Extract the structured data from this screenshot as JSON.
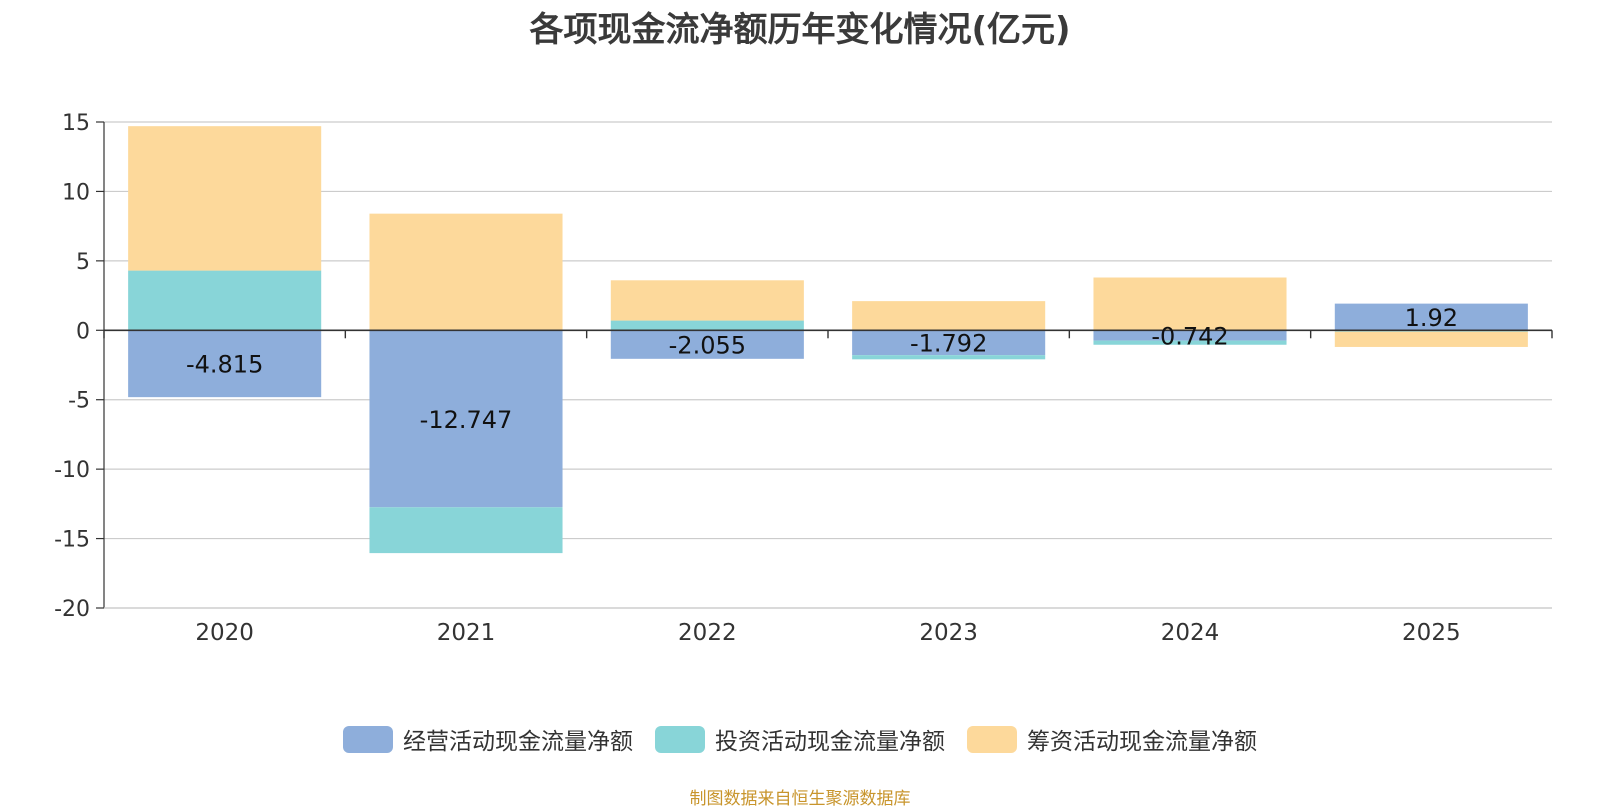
{
  "chart_data": {
    "type": "bar",
    "stacked": true,
    "title": "各项现金流净额历年变化情况(亿元)",
    "categories": [
      "2020",
      "2021",
      "2022",
      "2023",
      "2024",
      "2025"
    ],
    "series": [
      {
        "name": "经营活动现金流量净额",
        "color": "#8eaedb",
        "values": [
          -4.815,
          -12.747,
          -2.055,
          -1.792,
          -0.742,
          1.92
        ],
        "labels": [
          "-4.815",
          "-12.747",
          "-2.055",
          "-1.792",
          "-0.742",
          "1.92"
        ]
      },
      {
        "name": "投资活动现金流量净额",
        "color": "#88d5d8",
        "values": [
          4.3,
          -3.3,
          0.7,
          -0.3,
          -0.3,
          -0.1
        ]
      },
      {
        "name": "筹资活动现金流量净额",
        "color": "#fdd99b",
        "values": [
          10.4,
          8.4,
          2.9,
          2.1,
          3.8,
          -1.1
        ]
      }
    ],
    "ylim": [
      -20,
      15
    ],
    "yticks": [
      "15",
      "10",
      "5",
      "0",
      "-5",
      "-10",
      "-15",
      "-20"
    ],
    "grid": true,
    "legend": "bottom-center"
  },
  "source": "制图数据来自恒生聚源数据库"
}
